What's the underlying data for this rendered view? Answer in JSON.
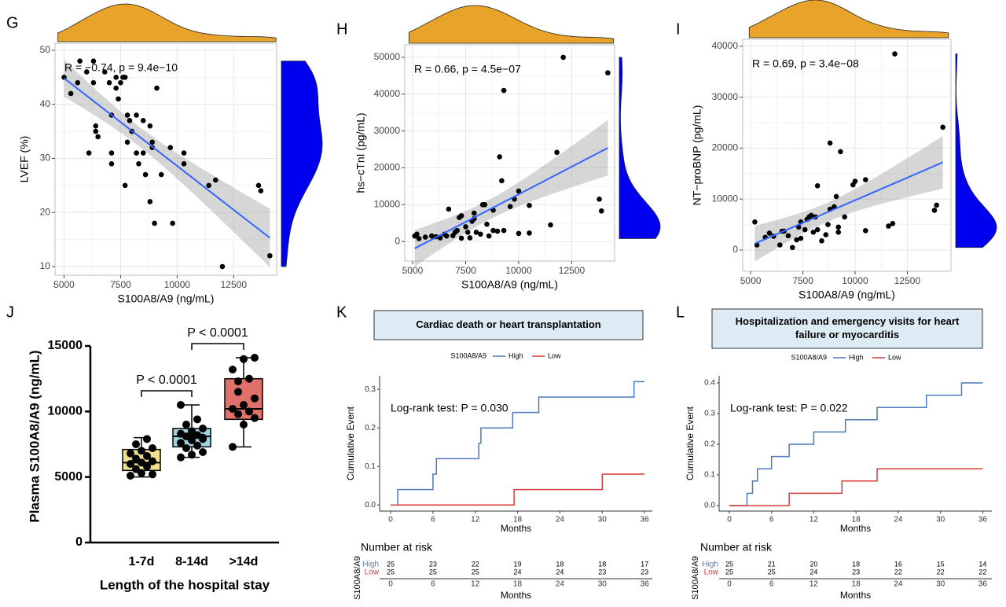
{
  "chart_data": [
    {
      "type": "scatter",
      "panel": "G",
      "xlabel": "S100A8/A9 (ng/mL)",
      "ylabel": "LVEF (%)",
      "annotation": "R = −0.74, p = 9.4e−10",
      "xlim": [
        4600,
        14400
      ],
      "ylim": [
        8.4,
        51.3
      ],
      "xticks": [
        5000,
        7500,
        10000,
        12500
      ],
      "yticks": [
        10,
        20,
        30,
        40,
        50
      ],
      "top_color": "#e8a32a",
      "right_color": "#0000ee",
      "point_color": "#000000",
      "fit_color": "#3366ff",
      "x": [
        5000,
        5300,
        5700,
        5600,
        6000,
        6100,
        6300,
        6300,
        6400,
        6500,
        6400,
        6800,
        7000,
        7100,
        7100,
        7100,
        7300,
        7300,
        7400,
        7500,
        7600,
        7700,
        7800,
        7800,
        7700,
        7900,
        8000,
        8200,
        8200,
        8300,
        8500,
        8500,
        8600,
        8800,
        8900,
        8900,
        8800,
        9000,
        9100,
        9300,
        9700,
        9800,
        10300,
        10300,
        11400,
        11700,
        12000,
        13600,
        13700,
        14100
      ],
      "values": [
        45,
        42,
        48,
        44,
        46,
        31,
        48,
        44,
        36,
        34,
        35,
        46,
        44,
        38,
        31,
        29,
        45,
        43,
        41,
        44,
        45,
        45,
        38,
        33,
        25,
        37,
        35,
        31,
        38,
        29,
        37,
        31,
        27,
        36,
        32,
        33,
        22,
        18,
        43,
        27,
        32,
        18,
        31,
        29,
        25,
        26,
        10,
        25,
        24,
        12
      ]
    },
    {
      "type": "scatter",
      "panel": "H",
      "xlabel": "S100A8/A9 (ng/mL)",
      "ylabel": "hs−cTnI (pg/mL)",
      "annotation": "R = 0.66, p = 4.5e−07",
      "xlim": [
        4630,
        14520
      ],
      "ylim": [
        -5300,
        53400
      ],
      "xticks": [
        5000,
        7500,
        10000,
        12500
      ],
      "yticks": [
        0,
        10000,
        20000,
        30000,
        40000,
        50000
      ],
      "top_color": "#e8a32a",
      "right_color": "#0000ee",
      "point_color": "#000000",
      "fit_color": "#3366ff",
      "x": [
        5100,
        5200,
        5300,
        5600,
        5900,
        6100,
        6300,
        6500,
        6600,
        6700,
        6900,
        7000,
        7100,
        7200,
        7300,
        7300,
        7500,
        7600,
        7700,
        7800,
        7900,
        7900,
        8000,
        8200,
        8300,
        8400,
        8500,
        8600,
        8800,
        8800,
        9000,
        9100,
        9200,
        9300,
        9300,
        9600,
        9800,
        10000,
        10000,
        10500,
        10500,
        11500,
        11800,
        12100,
        13800,
        13900,
        14200
      ],
      "values": [
        1500,
        2000,
        800,
        1200,
        1500,
        1300,
        1000,
        2000,
        1500,
        8800,
        1600,
        2500,
        3000,
        6500,
        7000,
        900,
        4000,
        2500,
        1000,
        5500,
        6200,
        7700,
        2500,
        2000,
        10000,
        10000,
        4700,
        1500,
        3000,
        8500,
        2800,
        23000,
        16500,
        41000,
        3000,
        9500,
        11500,
        13700,
        2200,
        9800,
        2300,
        4500,
        24200,
        50000,
        11500,
        8300,
        45800
      ]
    },
    {
      "type": "scatter",
      "panel": "I",
      "xlabel": "S100A8/A9 (ng/mL)",
      "ylabel": "NT−proBNP (pg/mL)",
      "annotation": "R = 0.69, p = 3.4e−08",
      "xlim": [
        4620,
        14590
      ],
      "ylim": [
        -4170,
        41360
      ],
      "xticks": [
        5000,
        7500,
        10000,
        12500
      ],
      "yticks": [
        0,
        10000,
        20000,
        30000,
        40000
      ],
      "top_color": "#e8a32a",
      "right_color": "#0000ee",
      "point_color": "#000000",
      "fit_color": "#3366ff",
      "x": [
        5200,
        5300,
        5700,
        5900,
        6100,
        6400,
        6500,
        6600,
        6800,
        7000,
        7200,
        7300,
        7400,
        7400,
        7600,
        7700,
        7800,
        7900,
        8000,
        8100,
        8200,
        8200,
        8400,
        8600,
        8700,
        8800,
        8800,
        9000,
        9100,
        9200,
        9200,
        9300,
        9500,
        9900,
        10000,
        10500,
        10500,
        11600,
        11800,
        11900,
        13800,
        13900,
        14200
      ],
      "values": [
        5500,
        1000,
        2500,
        3300,
        2700,
        1000,
        3700,
        3700,
        2800,
        500,
        2000,
        4500,
        2300,
        5500,
        4000,
        6000,
        6500,
        6800,
        3500,
        6500,
        4000,
        12600,
        1800,
        3000,
        5000,
        8000,
        21000,
        8500,
        10500,
        3500,
        4500,
        19300,
        6500,
        12800,
        13500,
        3800,
        13800,
        4700,
        5200,
        38500,
        7800,
        8800,
        24100
      ]
    },
    {
      "type": "box",
      "panel": "J",
      "ylabel": "Plasma S100A8/A9 (ng/mL)",
      "xlabel": "Length of the hospital stay",
      "categories": [
        "1-7d",
        "8-14d",
        ">14d"
      ],
      "ylim": [
        0,
        15000
      ],
      "yticks": [
        0,
        5000,
        10000,
        15000
      ],
      "comparisons": [
        "P < 0.0001",
        "P < 0.0001"
      ],
      "boxes": [
        {
          "color": "#f0df8c",
          "min": 5000,
          "q1": 5500,
          "median": 6100,
          "q3": 7100,
          "max": 8000,
          "points": [
            5100,
            5300,
            5200,
            5600,
            5800,
            6000,
            6100,
            6200,
            6400,
            6600,
            6800,
            7000,
            7200,
            7500,
            7900
          ]
        },
        {
          "color": "#9fd3de",
          "min": 6500,
          "q1": 7300,
          "median": 8100,
          "q3": 8700,
          "max": 10500,
          "points": [
            6500,
            6700,
            6900,
            7200,
            7400,
            7600,
            7800,
            8000,
            8100,
            8200,
            8300,
            8500,
            8700,
            9000,
            9400,
            10500,
            8100,
            7900
          ]
        },
        {
          "color": "#e0706a",
          "min": 7300,
          "q1": 9400,
          "median": 10200,
          "q3": 12500,
          "max": 14100,
          "points": [
            7300,
            9000,
            9500,
            9800,
            10000,
            10200,
            10500,
            11000,
            11500,
            12500,
            13200,
            14000,
            14100,
            12300
          ]
        }
      ]
    },
    {
      "type": "km",
      "panel": "K",
      "title": "Cardiac death or heart transplantation",
      "legend_title": "S100A8/A9",
      "xlabel": "Months",
      "ylabel": "Cumulative Event",
      "annotation": "Log-rank test: P = 0.030",
      "xlim": [
        -1.56,
        37.1
      ],
      "ylim": [
        -0.016,
        0.335
      ],
      "xticks": [
        0,
        6,
        12,
        18,
        24,
        30,
        36
      ],
      "yticks": [
        {
          "value": 0,
          "label": "0.0"
        },
        0.1,
        0.2,
        0.3
      ],
      "series": [
        {
          "name": "High",
          "color": "#4f79bd",
          "x": [
            0,
            1,
            6,
            6.5,
            12.5,
            12.8,
            17.3,
            21,
            34.5,
            36
          ],
          "values": [
            0,
            0.04,
            0.08,
            0.12,
            0.16,
            0.2,
            0.24,
            0.28,
            0.32,
            0.32
          ]
        },
        {
          "name": "Low",
          "color": "#d63c3c",
          "x": [
            0,
            17.5,
            30,
            36
          ],
          "values": [
            0,
            0.04,
            0.08,
            0.08
          ]
        }
      ],
      "risk_table": {
        "title": "Number at risk",
        "ylabel": "S100A8/A9",
        "xlabel": "Months",
        "rows": [
          {
            "name": "High",
            "values": [
              25,
              23,
              22,
              19,
              18,
              18,
              17
            ]
          },
          {
            "name": "Low",
            "values": [
              25,
              25,
              25,
              24,
              24,
              23,
              23
            ]
          }
        ]
      }
    },
    {
      "type": "km",
      "panel": "L",
      "title": "Hospitalization and emergency visits for heart failure or myocarditis",
      "legend_title": "S100A8/A9",
      "xlabel": "Months",
      "ylabel": "Cumulative Event",
      "annotation": "Log-rank test: P = 0.022",
      "xlim": [
        -1.45,
        37.3
      ],
      "ylim": [
        -0.018,
        0.423
      ],
      "xticks": [
        0,
        6,
        12,
        18,
        24,
        30,
        36
      ],
      "yticks": [
        {
          "value": 0,
          "label": "0.0"
        },
        0.1,
        0.2,
        0.3,
        0.4
      ],
      "series": [
        {
          "name": "High",
          "color": "#4f79bd",
          "x": [
            0,
            2.5,
            3.3,
            4,
            6,
            8.5,
            12,
            16.5,
            21,
            28,
            33,
            36
          ],
          "values": [
            0,
            0.04,
            0.08,
            0.12,
            0.16,
            0.2,
            0.24,
            0.28,
            0.32,
            0.36,
            0.4,
            0.4
          ]
        },
        {
          "name": "Low",
          "color": "#d63c3c",
          "x": [
            0,
            8.5,
            16,
            21,
            36
          ],
          "values": [
            0,
            0.04,
            0.08,
            0.12,
            0.12
          ]
        }
      ],
      "risk_table": {
        "title": "Number at risk",
        "ylabel": "S100A8/A9",
        "xlabel": "Months",
        "rows": [
          {
            "name": "High",
            "values": [
              25,
              21,
              20,
              18,
              16,
              15,
              14
            ]
          },
          {
            "name": "Low",
            "values": [
              25,
              25,
              24,
              23,
              22,
              22,
              22
            ]
          }
        ]
      }
    }
  ]
}
